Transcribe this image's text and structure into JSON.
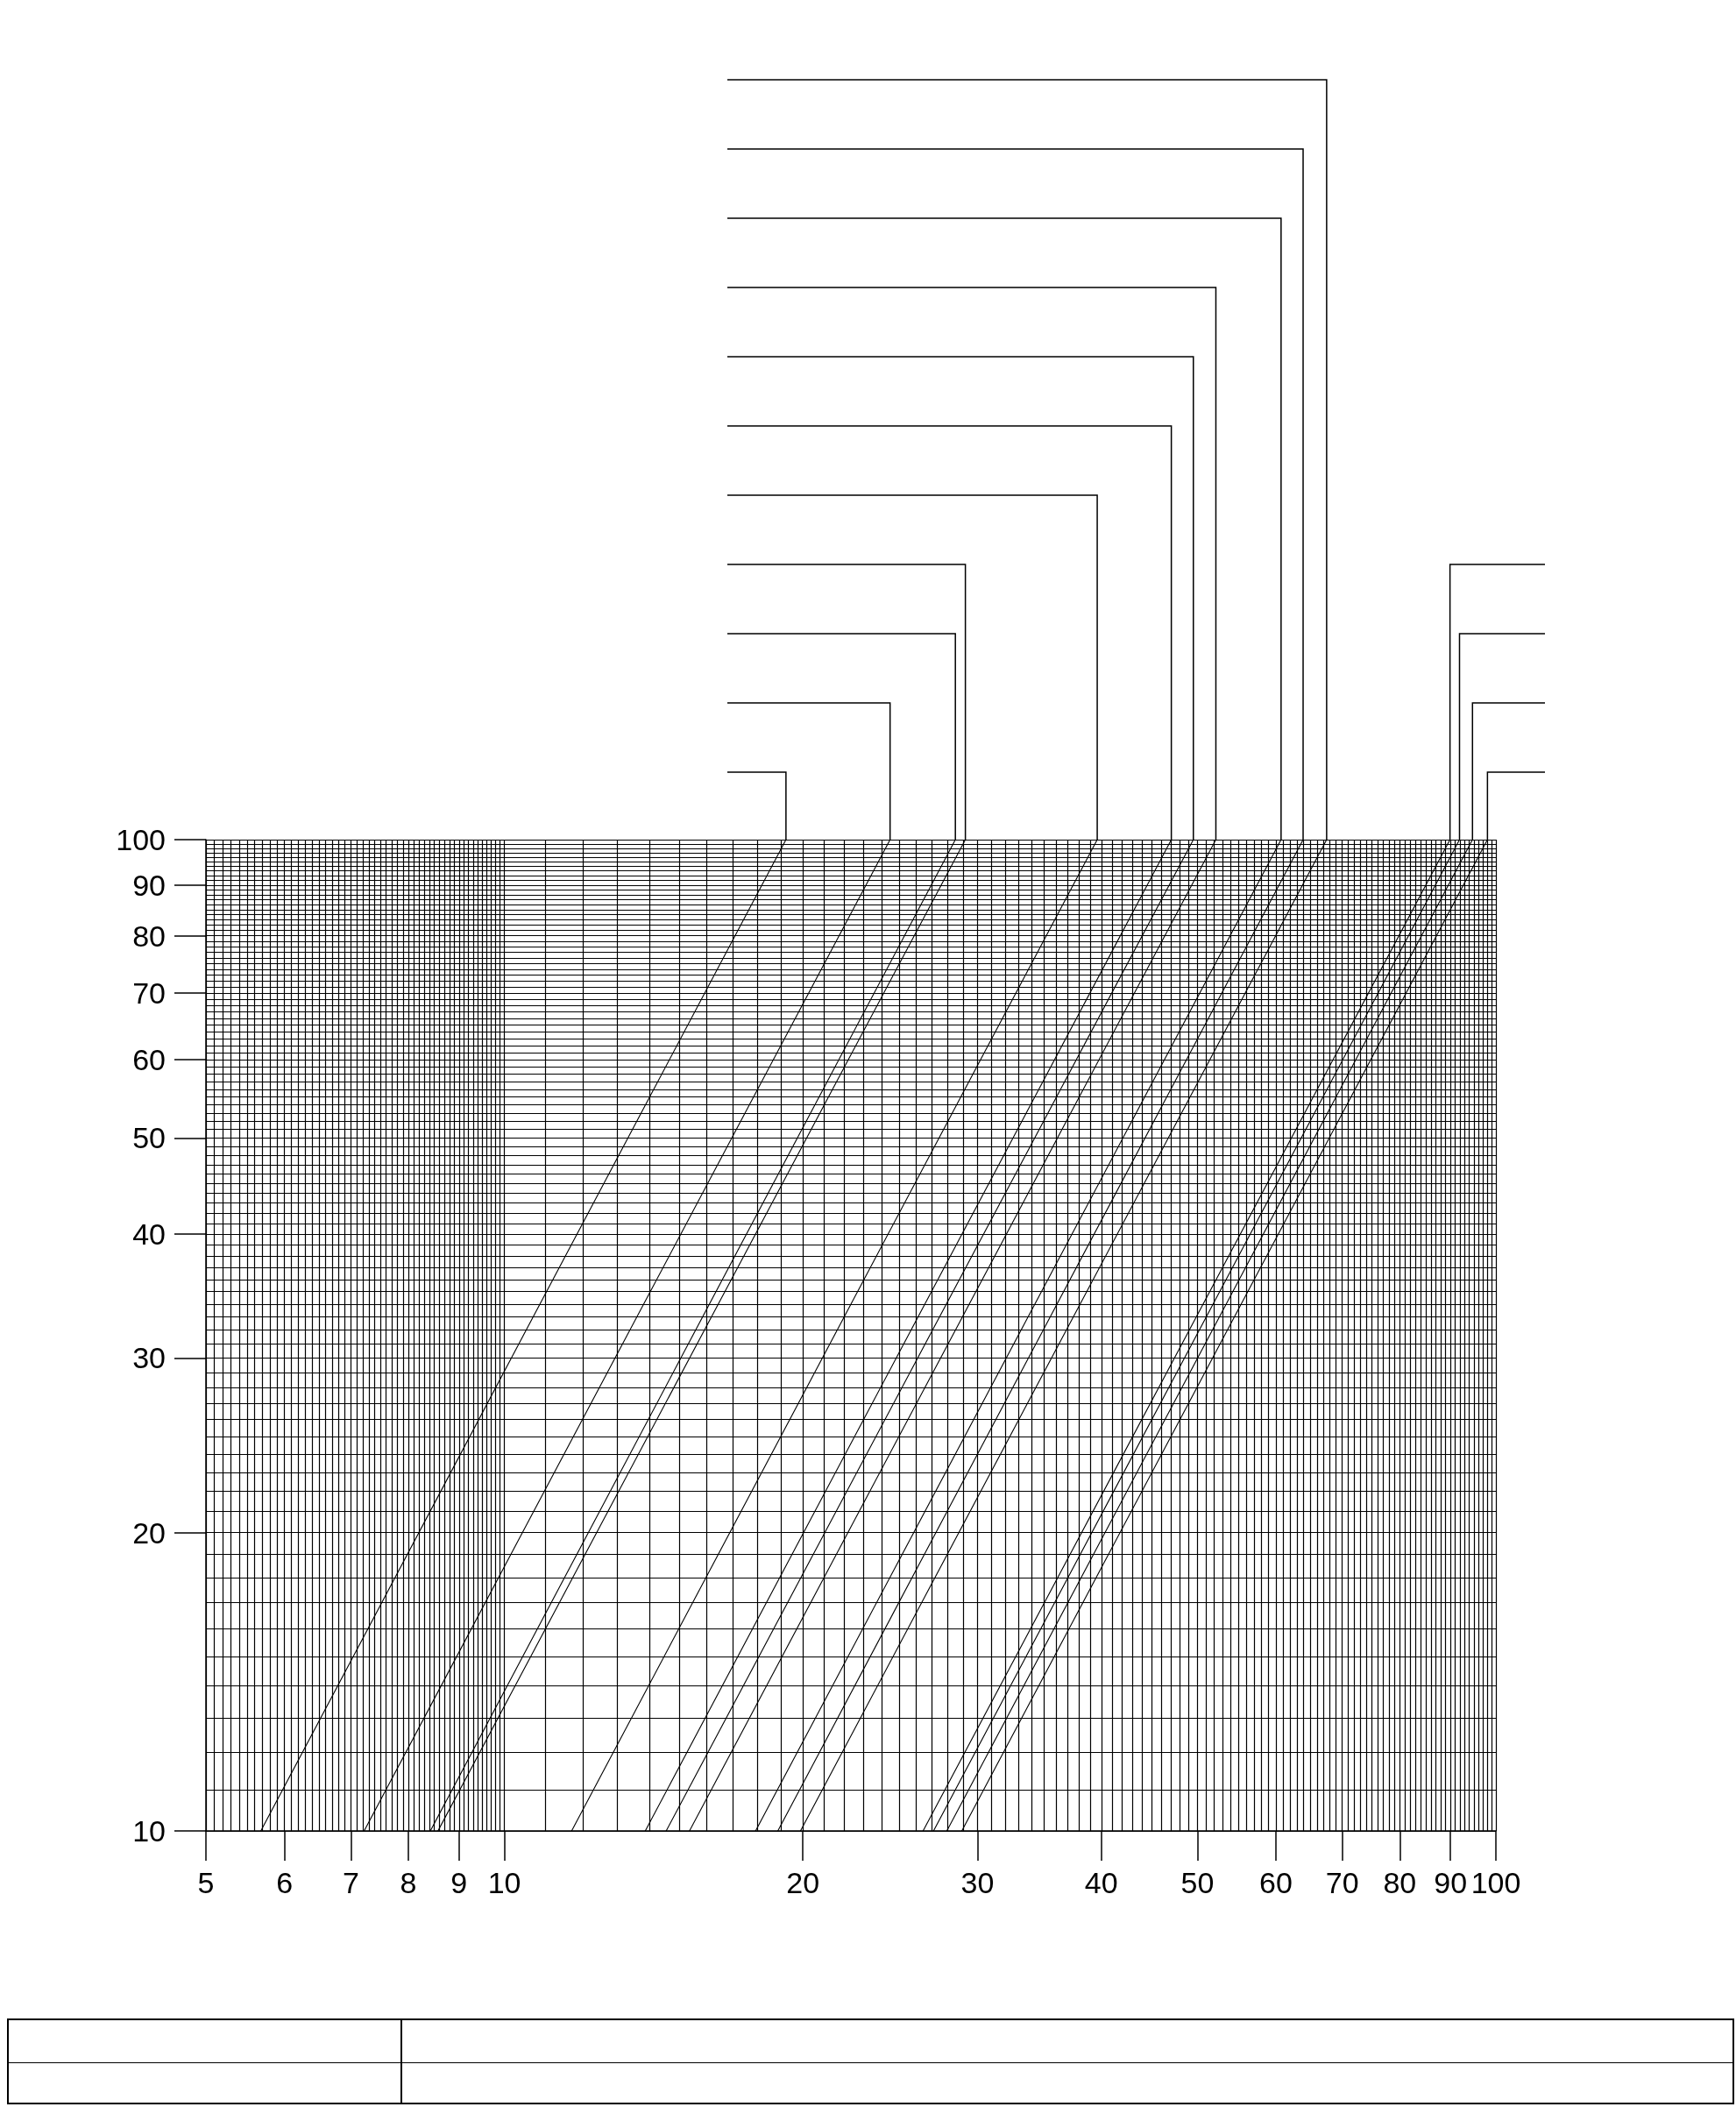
{
  "chart_data": {
    "type": "line",
    "log": "xy",
    "xlim": [
      5,
      100
    ],
    "ylim": [
      10,
      100
    ],
    "xticks": [
      5,
      6,
      7,
      8,
      9,
      10,
      20,
      30,
      40,
      50,
      60,
      70,
      80,
      90,
      100
    ],
    "yticks": [
      10,
      20,
      30,
      40,
      50,
      60,
      70,
      80,
      90,
      100
    ],
    "grid": true,
    "marker": "none",
    "line_style": "solid",
    "series": [
      {
        "color": "#000000",
        "x": [
          5.68,
          19.23
        ],
        "values": [
          10,
          100
        ]
      },
      {
        "color": "#000000",
        "x": [
          7.22,
          24.49
        ],
        "values": [
          10,
          100
        ]
      },
      {
        "color": "#000000",
        "x": [
          8.42,
          28.5
        ],
        "values": [
          10,
          100
        ]
      },
      {
        "color": "#000000",
        "x": [
          8.57,
          29.17
        ],
        "values": [
          10,
          100
        ]
      },
      {
        "color": "#000000",
        "x": [
          11.69,
          39.62
        ],
        "values": [
          10,
          100
        ]
      },
      {
        "color": "#000000",
        "x": [
          13.87,
          47.06
        ],
        "values": [
          10,
          100
        ]
      },
      {
        "color": "#000000",
        "x": [
          14.56,
          49.53
        ],
        "values": [
          10,
          100
        ]
      },
      {
        "color": "#000000",
        "x": [
          15.37,
          52.19
        ],
        "values": [
          10,
          100
        ]
      },
      {
        "color": "#000000",
        "x": [
          17.92,
          60.72
        ],
        "values": [
          10,
          100
        ]
      },
      {
        "color": "#000000",
        "x": [
          18.87,
          63.91
        ],
        "values": [
          10,
          100
        ]
      },
      {
        "color": "#000000",
        "x": [
          19.89,
          67.5
        ],
        "values": [
          10,
          100
        ]
      },
      {
        "color": "#000000",
        "x": [
          26.44,
          89.89
        ],
        "values": [
          10,
          100
        ]
      },
      {
        "color": "#000000",
        "x": [
          27.09,
          91.9
        ],
        "values": [
          10,
          100
        ]
      },
      {
        "color": "#000000",
        "x": [
          27.94,
          94.71
        ],
        "values": [
          10,
          100
        ]
      },
      {
        "color": "#000000",
        "x": [
          28.93,
          98.06
        ],
        "values": [
          10,
          100
        ]
      }
    ]
  }
}
